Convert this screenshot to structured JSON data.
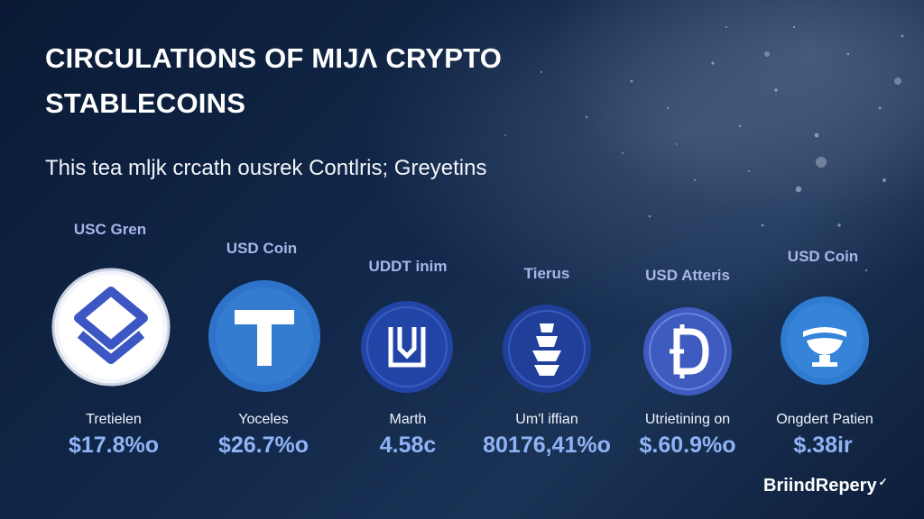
{
  "header": {
    "title": "CIRCULATIONS OF MIJɅ CRYPTO\nSTABLECOINS",
    "subtitle": "This tea mljk crcath ousrek Contlris; Greyetins"
  },
  "coins": [
    {
      "name": "USC Gren",
      "label": "Tretielen",
      "value": "$17.8%o",
      "logo_icon": "chevron-stack-icon",
      "color": "#3c56c4"
    },
    {
      "name": "USD Coin",
      "label": "Yoceles",
      "value": "$26.7%o",
      "logo_icon": "tether-t-icon",
      "color": "#2e73c9"
    },
    {
      "name": "UDDT inim",
      "label": "Marth",
      "value": "4.58c",
      "logo_icon": "bracket-down-arrow-icon",
      "color": "#2244a6"
    },
    {
      "name": "Tierus",
      "label": "Um'l iffian",
      "value": "80176,41%o",
      "logo_icon": "stacked-blocks-icon",
      "color": "#1f3f99"
    },
    {
      "name": "USD Atteris",
      "label": "Utrietining on",
      "value": "$.60.9%o",
      "logo_icon": "d-coin-icon",
      "color": "#3e5cc0"
    },
    {
      "name": "USD Coin",
      "label": "Ongdert Patien",
      "value": "$.38ir",
      "logo_icon": "bowl-coin-icon",
      "color": "#2f7bd0"
    }
  ],
  "brand": {
    "text": "BriindRepery",
    "mark": "✓"
  }
}
